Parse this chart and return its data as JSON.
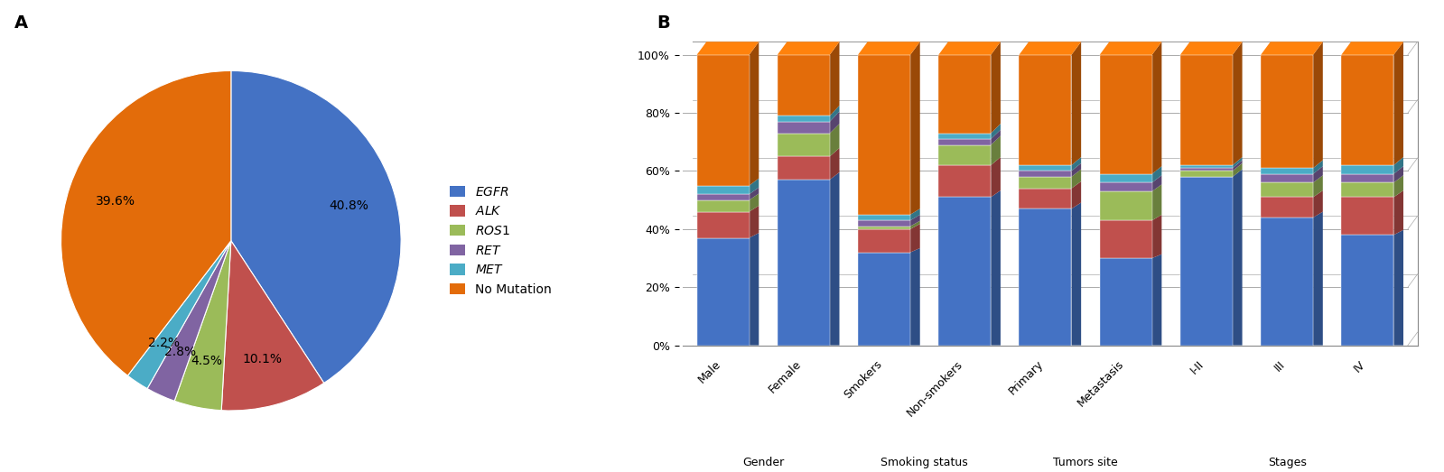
{
  "pie_values": [
    40.8,
    10.1,
    4.5,
    2.8,
    2.2,
    39.6
  ],
  "pie_colors": [
    "#4472C4",
    "#C0504D",
    "#9BBB59",
    "#8064A2",
    "#4BACC6",
    "#E36C0A"
  ],
  "legend_labels": [
    "EGFR",
    "ALK",
    "ROS1",
    "RET",
    "MET",
    "No Mutation"
  ],
  "bar_categories": [
    "Male",
    "Female",
    "Smokers",
    "Non-smokers",
    "Primary",
    "Metastasis",
    "I-II",
    "III",
    "IV"
  ],
  "bar_data": {
    "EGFR": [
      37,
      57,
      32,
      51,
      47,
      30,
      58,
      44,
      38
    ],
    "ALK": [
      9,
      8,
      8,
      11,
      7,
      13,
      0,
      7,
      13
    ],
    "ROS1": [
      4,
      8,
      1,
      7,
      4,
      10,
      2,
      5,
      5
    ],
    "RET": [
      2,
      4,
      2,
      2,
      2,
      3,
      1,
      3,
      3
    ],
    "MET": [
      3,
      2,
      2,
      2,
      2,
      3,
      1,
      2,
      3
    ],
    "No Mutation": [
      45,
      21,
      55,
      27,
      38,
      41,
      38,
      39,
      38
    ]
  },
  "bar_colors": [
    "#4472C4",
    "#C0504D",
    "#9BBB59",
    "#8064A2",
    "#4BACC6",
    "#E36C0A"
  ],
  "group_labels": [
    "Gender",
    "Smoking status",
    "Tumors site",
    "Stages"
  ],
  "group_centers": [
    0.5,
    2.5,
    4.5,
    7.0
  ],
  "label_A": "A",
  "label_B": "B"
}
